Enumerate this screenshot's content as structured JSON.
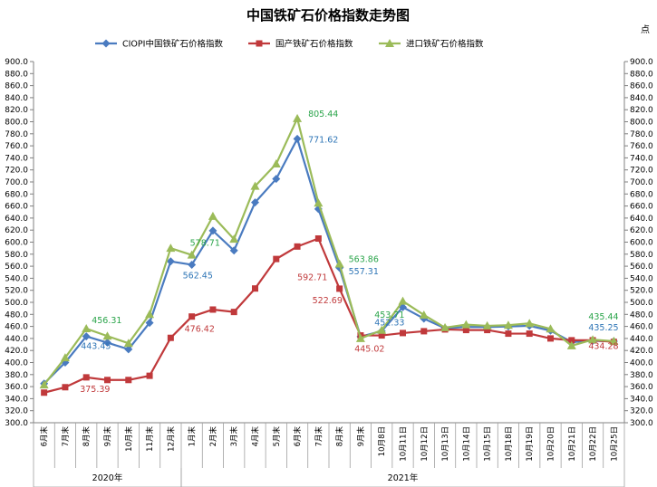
{
  "chart_data": {
    "type": "line",
    "title": "中国铁矿石价格指数走势图",
    "unit_label": "点",
    "ylim": [
      300,
      900
    ],
    "ystep": 20,
    "grid": false,
    "legend_position": "top",
    "categories": [
      "6月末",
      "7月末",
      "8月末",
      "9月末",
      "10月末",
      "11月末",
      "12月末",
      "1月末",
      "2月末",
      "3月末",
      "4月末",
      "5月末",
      "6月末",
      "7月末",
      "8月末",
      "9月末",
      "10月8日",
      "10月11日",
      "10月12日",
      "10月13日",
      "10月14日",
      "10月15日",
      "10月18日",
      "10月19日",
      "10月20日",
      "10月21日",
      "10月22日",
      "10月25日"
    ],
    "category_groups": [
      {
        "label": "2020年",
        "start": 0,
        "end": 6
      },
      {
        "label": "2021年",
        "start": 7,
        "end": 27
      }
    ],
    "series": [
      {
        "name": "CIOPI中国铁矿石价格指数",
        "color": "#4a7bc0",
        "marker": "diamond",
        "values": [
          365,
          400,
          443.45,
          433,
          422,
          466,
          568,
          562.45,
          619,
          586,
          666,
          705,
          771.62,
          655,
          557.31,
          443,
          452.33,
          492,
          473,
          457,
          459,
          459,
          460,
          461,
          453,
          434,
          436,
          435.25
        ]
      },
      {
        "name": "国产铁矿石价格指数",
        "color": "#c0393b",
        "marker": "square",
        "values": [
          350,
          359,
          375.39,
          371,
          371,
          378,
          441,
          476.42,
          488,
          484,
          523,
          572,
          592.71,
          606,
          522.69,
          445,
          445.02,
          449,
          452,
          455,
          454,
          454,
          448,
          448,
          440,
          437,
          437,
          434.28
        ]
      },
      {
        "name": "进口铁矿石价格指数",
        "color": "#9bbb59",
        "marker": "triangle",
        "values": [
          363,
          408,
          456.31,
          444,
          432,
          480,
          590,
          578.71,
          643,
          605,
          693,
          730,
          805.44,
          665,
          563.86,
          440,
          453.71,
          502,
          479,
          458,
          463,
          461,
          462,
          465,
          456,
          428,
          438,
          435.44
        ]
      }
    ],
    "annotations": [
      {
        "text": "456.31",
        "series": 2,
        "index": 2,
        "color": "#2aa44a"
      },
      {
        "text": "443.45",
        "series": 0,
        "index": 2,
        "color": "#2e75b6"
      },
      {
        "text": "375.39",
        "series": 1,
        "index": 2,
        "color": "#c0393b"
      },
      {
        "text": "578.71",
        "series": 2,
        "index": 7,
        "color": "#2aa44a"
      },
      {
        "text": "562.45",
        "series": 0,
        "index": 7,
        "color": "#2e75b6"
      },
      {
        "text": "476.42",
        "series": 1,
        "index": 7,
        "color": "#c0393b"
      },
      {
        "text": "805.44",
        "series": 2,
        "index": 12,
        "color": "#2aa44a"
      },
      {
        "text": "771.62",
        "series": 0,
        "index": 12,
        "color": "#2e75b6"
      },
      {
        "text": "592.71",
        "series": 1,
        "index": 12,
        "color": "#c0393b"
      },
      {
        "text": "563.86",
        "series": 2,
        "index": 14,
        "color": "#2aa44a"
      },
      {
        "text": "557.31",
        "series": 0,
        "index": 14,
        "color": "#2e75b6"
      },
      {
        "text": "522.69",
        "series": 1,
        "index": 14,
        "color": "#c0393b"
      },
      {
        "text": "453.71",
        "series": 2,
        "index": 16,
        "color": "#2aa44a"
      },
      {
        "text": "452.33",
        "series": 0,
        "index": 16,
        "color": "#2e75b6"
      },
      {
        "text": "445.02",
        "series": 1,
        "index": 16,
        "color": "#c0393b"
      },
      {
        "text": "435.44",
        "series": 2,
        "index": 27,
        "color": "#2aa44a"
      },
      {
        "text": "435.25",
        "series": 0,
        "index": 27,
        "color": "#2e75b6"
      },
      {
        "text": "434.28",
        "series": 1,
        "index": 27,
        "color": "#c0393b"
      }
    ]
  }
}
